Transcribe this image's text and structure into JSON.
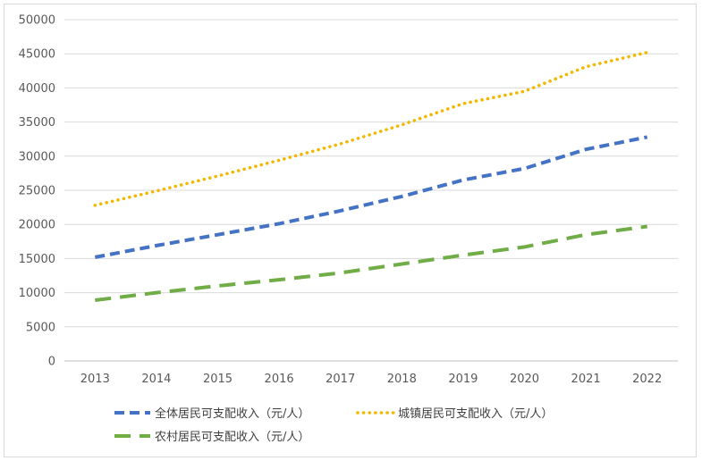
{
  "chart_data": {
    "type": "line",
    "title": "",
    "xlabel": "",
    "ylabel": "",
    "categories": [
      "2013",
      "2014",
      "2015",
      "2016",
      "2017",
      "2018",
      "2019",
      "2020",
      "2021",
      "2022"
    ],
    "ylim": [
      0,
      50000
    ],
    "yticks": [
      0,
      5000,
      10000,
      15000,
      20000,
      25000,
      30000,
      35000,
      40000,
      45000,
      50000
    ],
    "grid": true,
    "legend_position": "bottom",
    "series": [
      {
        "name": "全体居民可支配收入（元/人）",
        "color": "#4472c4",
        "dash": "dashed",
        "values": [
          15200,
          16900,
          18500,
          20100,
          22000,
          24100,
          26500,
          28200,
          31000,
          32800
        ]
      },
      {
        "name": "城镇居民可支配收入（元/人）",
        "color": "#f2b800",
        "dash": "dotted",
        "values": [
          22800,
          24900,
          27100,
          29400,
          31800,
          34600,
          37700,
          39500,
          43100,
          45200
        ]
      },
      {
        "name": "农村居民可支配收入（元/人）",
        "color": "#70ad47",
        "dash": "long-dashed",
        "values": [
          8900,
          10000,
          11000,
          11900,
          12900,
          14200,
          15500,
          16700,
          18500,
          19700
        ]
      }
    ]
  }
}
